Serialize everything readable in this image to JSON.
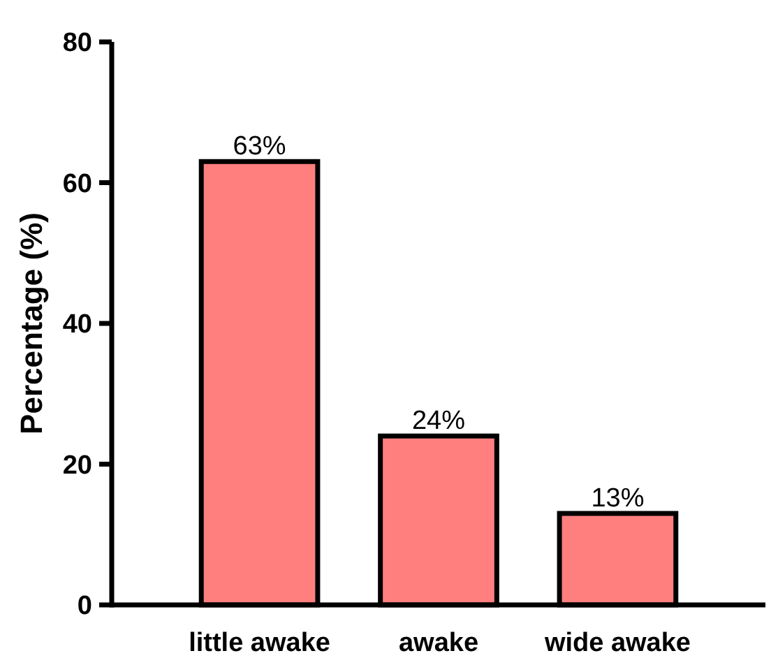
{
  "chart_data": {
    "type": "bar",
    "ylabel": "Percentage (%)",
    "categories": [
      "little awake",
      "awake",
      "wide awake"
    ],
    "values": [
      63,
      24,
      13
    ],
    "color": "#ff7f7f",
    "value_labels": [
      "63%",
      "24%",
      "13%"
    ],
    "ylim": [
      0,
      80
    ],
    "yticks": [
      0,
      20,
      40,
      60,
      80
    ]
  }
}
